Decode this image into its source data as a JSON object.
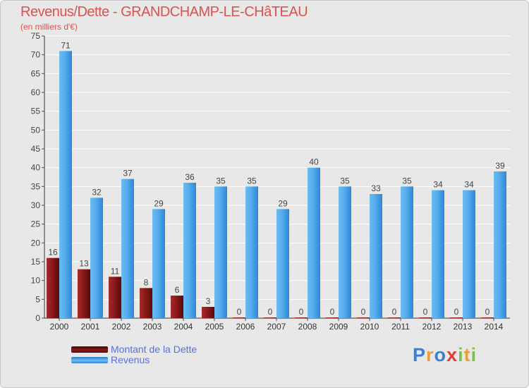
{
  "header": {
    "title": "Revenus/Dette - GRANDCHAMP-LE-CHâTEAU",
    "subtitle": "(en milliers d'€)"
  },
  "chart_data": {
    "type": "bar",
    "title": "Revenus/Dette - GRANDCHAMP-LE-CHâTEAU",
    "subtitle": "(en milliers d'€)",
    "xlabel": "",
    "ylabel": "",
    "ylim": [
      0,
      75
    ],
    "yticks": [
      0,
      5,
      10,
      15,
      20,
      25,
      30,
      35,
      40,
      45,
      50,
      55,
      60,
      65,
      70,
      75
    ],
    "grid": true,
    "legend_position": "bottom-left",
    "categories": [
      "2000",
      "2001",
      "2002",
      "2003",
      "2004",
      "2005",
      "2006",
      "2007",
      "2008",
      "2009",
      "2010",
      "2011",
      "2012",
      "2013",
      "2014"
    ],
    "series": [
      {
        "name": "Montant de la Dette",
        "color": "#8b1a1a",
        "values": [
          16,
          13,
          11,
          8,
          6,
          3,
          0,
          0,
          0,
          0,
          0,
          0,
          0,
          0,
          0
        ]
      },
      {
        "name": "Revenus",
        "color": "#4aa3e8",
        "values": [
          71,
          32,
          37,
          29,
          36,
          35,
          35,
          29,
          40,
          35,
          33,
          35,
          34,
          34,
          39
        ]
      }
    ]
  },
  "brand": {
    "letters": [
      "P",
      "r",
      "o",
      "x",
      "i",
      "t",
      "i"
    ],
    "colors": [
      "#3b7fd0",
      "#e8a03a",
      "#3b7fd0",
      "#e03b3b",
      "#7cc24a",
      "#e8a03a",
      "#7cc24a"
    ]
  }
}
